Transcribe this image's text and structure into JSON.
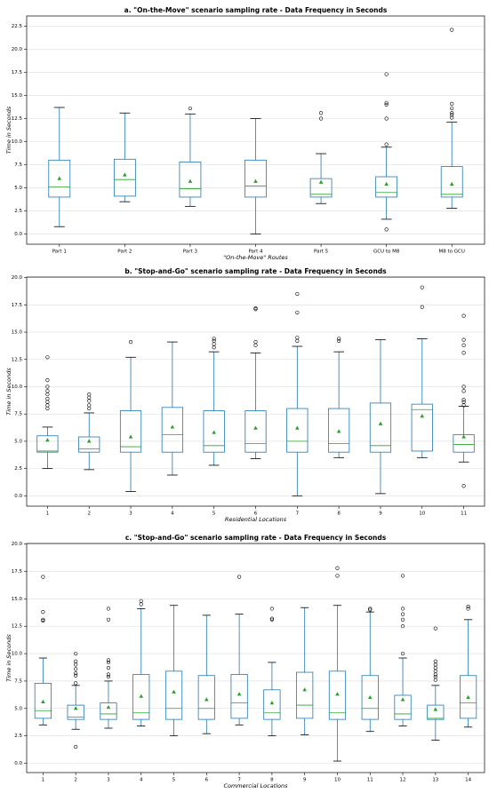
{
  "chart_data": [
    {
      "type": "box",
      "title": "a. \"On-the-Move\" scenario sampling rate - Data Frequency in Seconds",
      "xlabel": "\"On-the-Move\" Routes",
      "ylabel": "Time in Seconds",
      "categories": [
        "Part 1",
        "Part 2",
        "Part 3",
        "Part 4",
        "Part 5",
        "GCU to M8",
        "M8 to GCU"
      ],
      "boxes": [
        {
          "min": 0.8,
          "q1": 4.0,
          "median": 5.1,
          "q3": 8.0,
          "max": 13.7,
          "mean": 6.0,
          "outliers": []
        },
        {
          "min": 3.5,
          "q1": 4.1,
          "median": 5.9,
          "q3": 8.1,
          "max": 13.1,
          "mean": 6.4,
          "outliers": []
        },
        {
          "min": 3.0,
          "q1": 4.0,
          "median": 4.9,
          "q3": 7.8,
          "max": 13.0,
          "mean": 5.7,
          "outliers": [
            13.6
          ]
        },
        {
          "min": 0.0,
          "q1": 4.0,
          "median": 5.2,
          "q3": 8.0,
          "max": 12.5,
          "mean": 5.7,
          "outliers": []
        },
        {
          "min": 3.3,
          "q1": 4.0,
          "median": 4.3,
          "q3": 6.0,
          "max": 8.7,
          "mean": 5.6,
          "outliers": [
            12.5,
            13.1
          ]
        },
        {
          "min": 1.6,
          "q1": 4.0,
          "median": 4.5,
          "q3": 6.2,
          "max": 9.4,
          "mean": 5.4,
          "outliers": [
            0.5,
            9.7,
            12.5,
            14.0,
            14.2,
            17.3
          ]
        },
        {
          "min": 2.8,
          "q1": 4.0,
          "median": 4.3,
          "q3": 7.3,
          "max": 12.1,
          "mean": 5.4,
          "outliers": [
            12.6,
            12.9,
            13.1,
            13.6,
            14.1,
            22.1
          ]
        }
      ],
      "ylim": [
        -1.1,
        23.6
      ],
      "yticks": [
        {
          "value": 0,
          "label": "0.0"
        },
        2.5,
        {
          "value": 5,
          "label": "5.0"
        },
        7.5,
        {
          "value": 10,
          "label": "10.0"
        },
        12.5,
        {
          "value": 15,
          "label": "15.0"
        },
        17.5,
        {
          "value": 20,
          "label": "20.0"
        },
        22.5
      ],
      "grid": true,
      "box_color": "#1f77b4",
      "median_color": "#2ca02c",
      "mean_color": "#2ca02c"
    },
    {
      "type": "box",
      "title": "b. \"Stop-and-Go\" scenario sampling rate - Data Frequency in Seconds",
      "xlabel": "Residential Locations",
      "ylabel": "Time in Seconds",
      "categories": [
        "1",
        "2",
        "3",
        "4",
        "5",
        "6",
        "7",
        "8",
        "9",
        "10",
        "11"
      ],
      "boxes": [
        {
          "min": 2.5,
          "q1": 4.0,
          "median": 4.1,
          "q3": 5.5,
          "max": 6.3,
          "mean": 5.1,
          "outliers": [
            8.0,
            8.3,
            8.6,
            8.9,
            9.3,
            9.6,
            10.0,
            10.6,
            12.7
          ]
        },
        {
          "min": 2.4,
          "q1": 4.0,
          "median": 4.3,
          "q3": 5.4,
          "max": 7.6,
          "mean": 5.0,
          "outliers": [
            8.0,
            8.3,
            8.7,
            9.0,
            9.3
          ]
        },
        {
          "min": 0.4,
          "q1": 4.0,
          "median": 4.5,
          "q3": 7.8,
          "max": 12.7,
          "mean": 5.4,
          "outliers": [
            14.1
          ]
        },
        {
          "min": 1.9,
          "q1": 4.0,
          "median": 5.6,
          "q3": 8.1,
          "max": 14.1,
          "mean": 6.3,
          "outliers": []
        },
        {
          "min": 2.8,
          "q1": 4.0,
          "median": 4.6,
          "q3": 7.8,
          "max": 13.2,
          "mean": 5.8,
          "outliers": [
            13.6,
            13.9,
            14.2,
            14.4
          ]
        },
        {
          "min": 3.4,
          "q1": 4.0,
          "median": 4.8,
          "q3": 7.8,
          "max": 13.1,
          "mean": 6.2,
          "outliers": [
            13.8,
            14.1,
            17.1,
            17.2
          ]
        },
        {
          "min": 0.0,
          "q1": 4.0,
          "median": 5.0,
          "q3": 8.0,
          "max": 13.7,
          "mean": 6.2,
          "outliers": [
            14.2,
            14.5,
            16.8,
            18.5
          ]
        },
        {
          "min": 3.5,
          "q1": 4.0,
          "median": 4.8,
          "q3": 8.0,
          "max": 13.2,
          "mean": 5.9,
          "outliers": [
            14.2,
            14.4
          ]
        },
        {
          "min": 0.2,
          "q1": 4.0,
          "median": 4.6,
          "q3": 8.5,
          "max": 14.3,
          "mean": 6.6,
          "outliers": []
        },
        {
          "min": 3.5,
          "q1": 4.1,
          "median": 7.9,
          "q3": 8.4,
          "max": 14.4,
          "mean": 7.3,
          "outliers": [
            17.3,
            19.1
          ]
        },
        {
          "min": 3.1,
          "q1": 4.0,
          "median": 4.7,
          "q3": 5.6,
          "max": 8.2,
          "mean": 5.4,
          "outliers": [
            0.9,
            8.3,
            8.6,
            8.8,
            9.6,
            10.0,
            13.1,
            13.8,
            14.3,
            16.5
          ]
        }
      ],
      "ylim": [
        -0.95,
        20.05
      ],
      "yticks": [
        {
          "value": 0,
          "label": "0.0"
        },
        2.5,
        {
          "value": 5,
          "label": "5.0"
        },
        7.5,
        {
          "value": 10,
          "label": "10.0"
        },
        12.5,
        {
          "value": 15,
          "label": "15.0"
        },
        17.5,
        {
          "value": 20,
          "label": "20.0"
        }
      ],
      "grid": true,
      "box_color": "#1f77b4",
      "median_color": "#2ca02c",
      "mean_color": "#2ca02c"
    },
    {
      "type": "box",
      "title": "c. \"Stop-and-Go\" scenario sampling rate - Data Frequency in Seconds",
      "xlabel": "Commercial Locations",
      "ylabel": "Time in Seconds",
      "categories": [
        "1",
        "2",
        "3",
        "4",
        "5",
        "6",
        "7",
        "8",
        "9",
        "10",
        "11",
        "12",
        "13",
        "14"
      ],
      "boxes": [
        {
          "min": 3.5,
          "q1": 4.1,
          "median": 4.8,
          "q3": 7.3,
          "max": 9.6,
          "mean": 5.6,
          "outliers": [
            13.0,
            13.1,
            13.8,
            17.0
          ]
        },
        {
          "min": 3.1,
          "q1": 4.0,
          "median": 4.2,
          "q3": 5.3,
          "max": 7.1,
          "mean": 5.0,
          "outliers": [
            1.5,
            7.3,
            8.0,
            8.2,
            8.6,
            9.0,
            9.3,
            10.0
          ]
        },
        {
          "min": 3.2,
          "q1": 4.0,
          "median": 4.5,
          "q3": 5.5,
          "max": 7.5,
          "mean": 5.1,
          "outliers": [
            7.9,
            8.1,
            8.7,
            9.2,
            9.4,
            13.1,
            14.1
          ]
        },
        {
          "min": 3.4,
          "q1": 4.0,
          "median": 4.6,
          "q3": 8.1,
          "max": 14.1,
          "mean": 6.1,
          "outliers": [
            14.5,
            14.8
          ]
        },
        {
          "min": 2.5,
          "q1": 4.0,
          "median": 5.0,
          "q3": 8.4,
          "max": 14.4,
          "mean": 6.5,
          "outliers": []
        },
        {
          "min": 2.7,
          "q1": 4.0,
          "median": 5.0,
          "q3": 8.0,
          "max": 13.5,
          "mean": 5.8,
          "outliers": []
        },
        {
          "min": 3.5,
          "q1": 4.1,
          "median": 5.5,
          "q3": 8.1,
          "max": 13.6,
          "mean": 6.3,
          "outliers": [
            17.0
          ]
        },
        {
          "min": 2.5,
          "q1": 4.0,
          "median": 4.6,
          "q3": 6.7,
          "max": 9.2,
          "mean": 5.5,
          "outliers": [
            13.1,
            13.2,
            14.1
          ]
        },
        {
          "min": 2.6,
          "q1": 4.1,
          "median": 5.3,
          "q3": 8.3,
          "max": 14.2,
          "mean": 6.7,
          "outliers": []
        },
        {
          "min": 0.2,
          "q1": 4.0,
          "median": 4.6,
          "q3": 8.4,
          "max": 14.4,
          "mean": 6.3,
          "outliers": [
            17.1,
            17.8
          ]
        },
        {
          "min": 2.9,
          "q1": 4.0,
          "median": 5.0,
          "q3": 8.0,
          "max": 13.8,
          "mean": 6.0,
          "outliers": [
            14.0,
            14.1
          ]
        },
        {
          "min": 3.4,
          "q1": 4.0,
          "median": 4.5,
          "q3": 6.2,
          "max": 9.6,
          "mean": 5.8,
          "outliers": [
            10.0,
            12.5,
            13.1,
            13.6,
            14.1,
            17.1
          ]
        },
        {
          "min": 2.1,
          "q1": 4.0,
          "median": 4.1,
          "q3": 5.3,
          "max": 7.1,
          "mean": 4.9,
          "outliers": [
            7.6,
            7.9,
            8.1,
            8.4,
            8.7,
            9.0,
            9.3,
            12.3
          ]
        },
        {
          "min": 3.3,
          "q1": 4.1,
          "median": 5.5,
          "q3": 8.0,
          "max": 13.1,
          "mean": 6.0,
          "outliers": [
            14.1,
            14.3
          ]
        }
      ],
      "ylim": [
        -0.85,
        20.05
      ],
      "yticks": [
        {
          "value": 0,
          "label": "0.0"
        },
        2.5,
        {
          "value": 5,
          "label": "5.0"
        },
        7.5,
        {
          "value": 10,
          "label": "10.0"
        },
        12.5,
        {
          "value": 15,
          "label": "15.0"
        },
        17.5,
        {
          "value": 20,
          "label": "20.0"
        }
      ],
      "grid": true,
      "box_color": "#1f77b4",
      "median_color": "#2ca02c",
      "mean_color": "#2ca02c"
    }
  ]
}
